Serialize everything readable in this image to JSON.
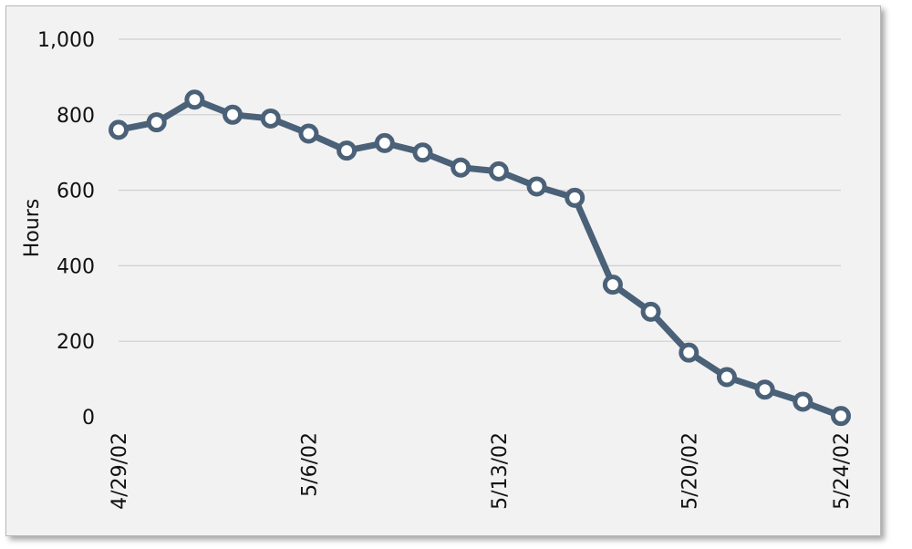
{
  "chart_data": {
    "type": "line",
    "title": "",
    "xlabel": "",
    "ylabel": "Hours",
    "ylim": [
      0,
      1000
    ],
    "yticks": [
      "0",
      "200",
      "400",
      "600",
      "800",
      "1,000"
    ],
    "ytick_values": [
      0,
      200,
      400,
      600,
      800,
      1000
    ],
    "xtick_labels": [
      "4/29/02",
      "5/6/02",
      "5/13/02",
      "5/20/02",
      "5/24/02"
    ],
    "xtick_indices": [
      0,
      5,
      10,
      15,
      19
    ],
    "grid": true,
    "legend": "none",
    "series": [
      {
        "values": [
          760,
          780,
          840,
          800,
          790,
          750,
          705,
          725,
          700,
          660,
          650,
          610,
          580,
          350,
          278,
          170,
          105,
          72,
          40,
          2
        ]
      }
    ]
  },
  "colors": {
    "line": "#4a6178",
    "marker_fill": "#ffffff",
    "background": "#f2f2f2"
  }
}
